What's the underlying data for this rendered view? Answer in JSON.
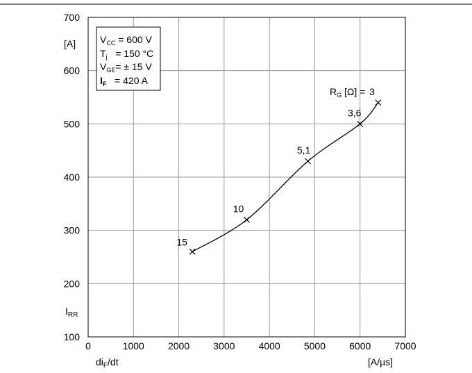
{
  "chart_data": {
    "type": "scatter",
    "title": "",
    "xlabel": "di",
    "xlabel_sub": "F",
    "xlabel_suffix": "/dt",
    "xunit": "[A/µs]",
    "ylabel": "I",
    "ylabel_sub": "RR",
    "yunit": "[A]",
    "xlim": [
      0,
      7000
    ],
    "ylim": [
      100,
      700
    ],
    "x_ticks": [
      0,
      1000,
      2000,
      3000,
      4000,
      5000,
      6000,
      7000
    ],
    "y_ticks": [
      100,
      200,
      300,
      400,
      500,
      600,
      700
    ],
    "grid": true,
    "series": [
      {
        "points": [
          {
            "x": 2300,
            "y": 260,
            "label": "15"
          },
          {
            "x": 3500,
            "y": 320,
            "label": "10"
          },
          {
            "x": 4850,
            "y": 430,
            "label": "5,1"
          },
          {
            "x": 6000,
            "y": 500,
            "label": "3,6"
          },
          {
            "x": 6400,
            "y": 540,
            "label": "3"
          }
        ]
      }
    ],
    "rg_label": {
      "main": "R",
      "sub": "G",
      "rest": " [Ω] ="
    },
    "conditions": [
      {
        "sym": "V",
        "sub": "CC",
        "text": " = 600 V",
        "bold": false
      },
      {
        "sym": "T",
        "sub": "j",
        "text": "   = 150 °C",
        "bold": false
      },
      {
        "sym": "V",
        "sub": "GE",
        "text": "= ± 15 V",
        "bold": false
      },
      {
        "sym": "I",
        "sub": "F",
        "text": "   = 420 A",
        "bold": true
      }
    ]
  }
}
